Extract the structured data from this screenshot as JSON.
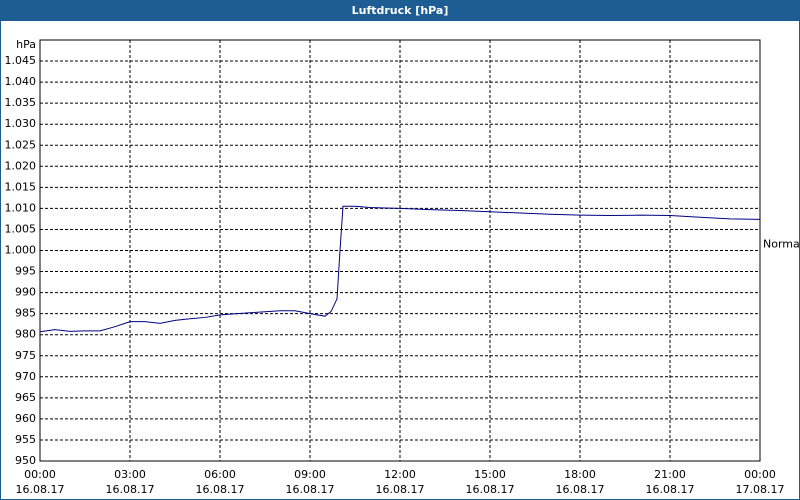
{
  "chart_data": {
    "type": "line",
    "title": "Luftdruck [hPa]",
    "y_unit": "hPa",
    "x": [
      0,
      0.5,
      1,
      1.5,
      2,
      2.5,
      3,
      3.5,
      4,
      4.5,
      5,
      5.5,
      6,
      7,
      8,
      8.5,
      9,
      9.5,
      9.7,
      9.9,
      10,
      10.1,
      10.5,
      11,
      12,
      13,
      14,
      15,
      16,
      17,
      18,
      19,
      20,
      21,
      22,
      23,
      24
    ],
    "series": [
      {
        "name": "Normal",
        "color": "#000080",
        "values": [
          980.7,
          981.2,
          980.8,
          980.9,
          980.9,
          981.9,
          983.1,
          983.1,
          982.7,
          983.4,
          983.8,
          984.1,
          984.7,
          985.2,
          985.7,
          985.7,
          985.0,
          984.4,
          985.5,
          988.5,
          1000,
          1010.5,
          1010.5,
          1010.2,
          1010.0,
          1009.7,
          1009.5,
          1009.2,
          1008.9,
          1008.6,
          1008.4,
          1008.3,
          1008.4,
          1008.3,
          1007.9,
          1007.5,
          1007.4
        ]
      }
    ],
    "xlim": [
      0,
      24
    ],
    "xticks": [
      {
        "value": 0,
        "label": "00:00",
        "date": "16.08.17"
      },
      {
        "value": 3,
        "label": "03:00",
        "date": "16.08.17"
      },
      {
        "value": 6,
        "label": "06:00",
        "date": "16.08.17"
      },
      {
        "value": 9,
        "label": "09:00",
        "date": "16.08.17"
      },
      {
        "value": 12,
        "label": "12:00",
        "date": "16.08.17"
      },
      {
        "value": 15,
        "label": "15:00",
        "date": "16.08.17"
      },
      {
        "value": 18,
        "label": "18:00",
        "date": "16.08.17"
      },
      {
        "value": 21,
        "label": "21:00",
        "date": "16.08.17"
      },
      {
        "value": 24,
        "label": "00:00",
        "date": "17.08.17"
      }
    ],
    "ylim": [
      950,
      1050
    ],
    "yticks": [
      950,
      955,
      960,
      965,
      970,
      975,
      980,
      985,
      990,
      995,
      {
        "value": 1000,
        "label": "1.000"
      },
      {
        "value": 1005,
        "label": "1.005"
      },
      {
        "value": 1010,
        "label": "1.010"
      },
      {
        "value": 1015,
        "label": "1.015"
      },
      {
        "value": 1020,
        "label": "1.020"
      },
      {
        "value": 1025,
        "label": "1.025"
      },
      {
        "value": 1030,
        "label": "1.030"
      },
      {
        "value": 1035,
        "label": "1.035"
      },
      {
        "value": 1040,
        "label": "1.040"
      },
      {
        "value": 1045,
        "label": "1.045"
      }
    ],
    "grid": true
  }
}
